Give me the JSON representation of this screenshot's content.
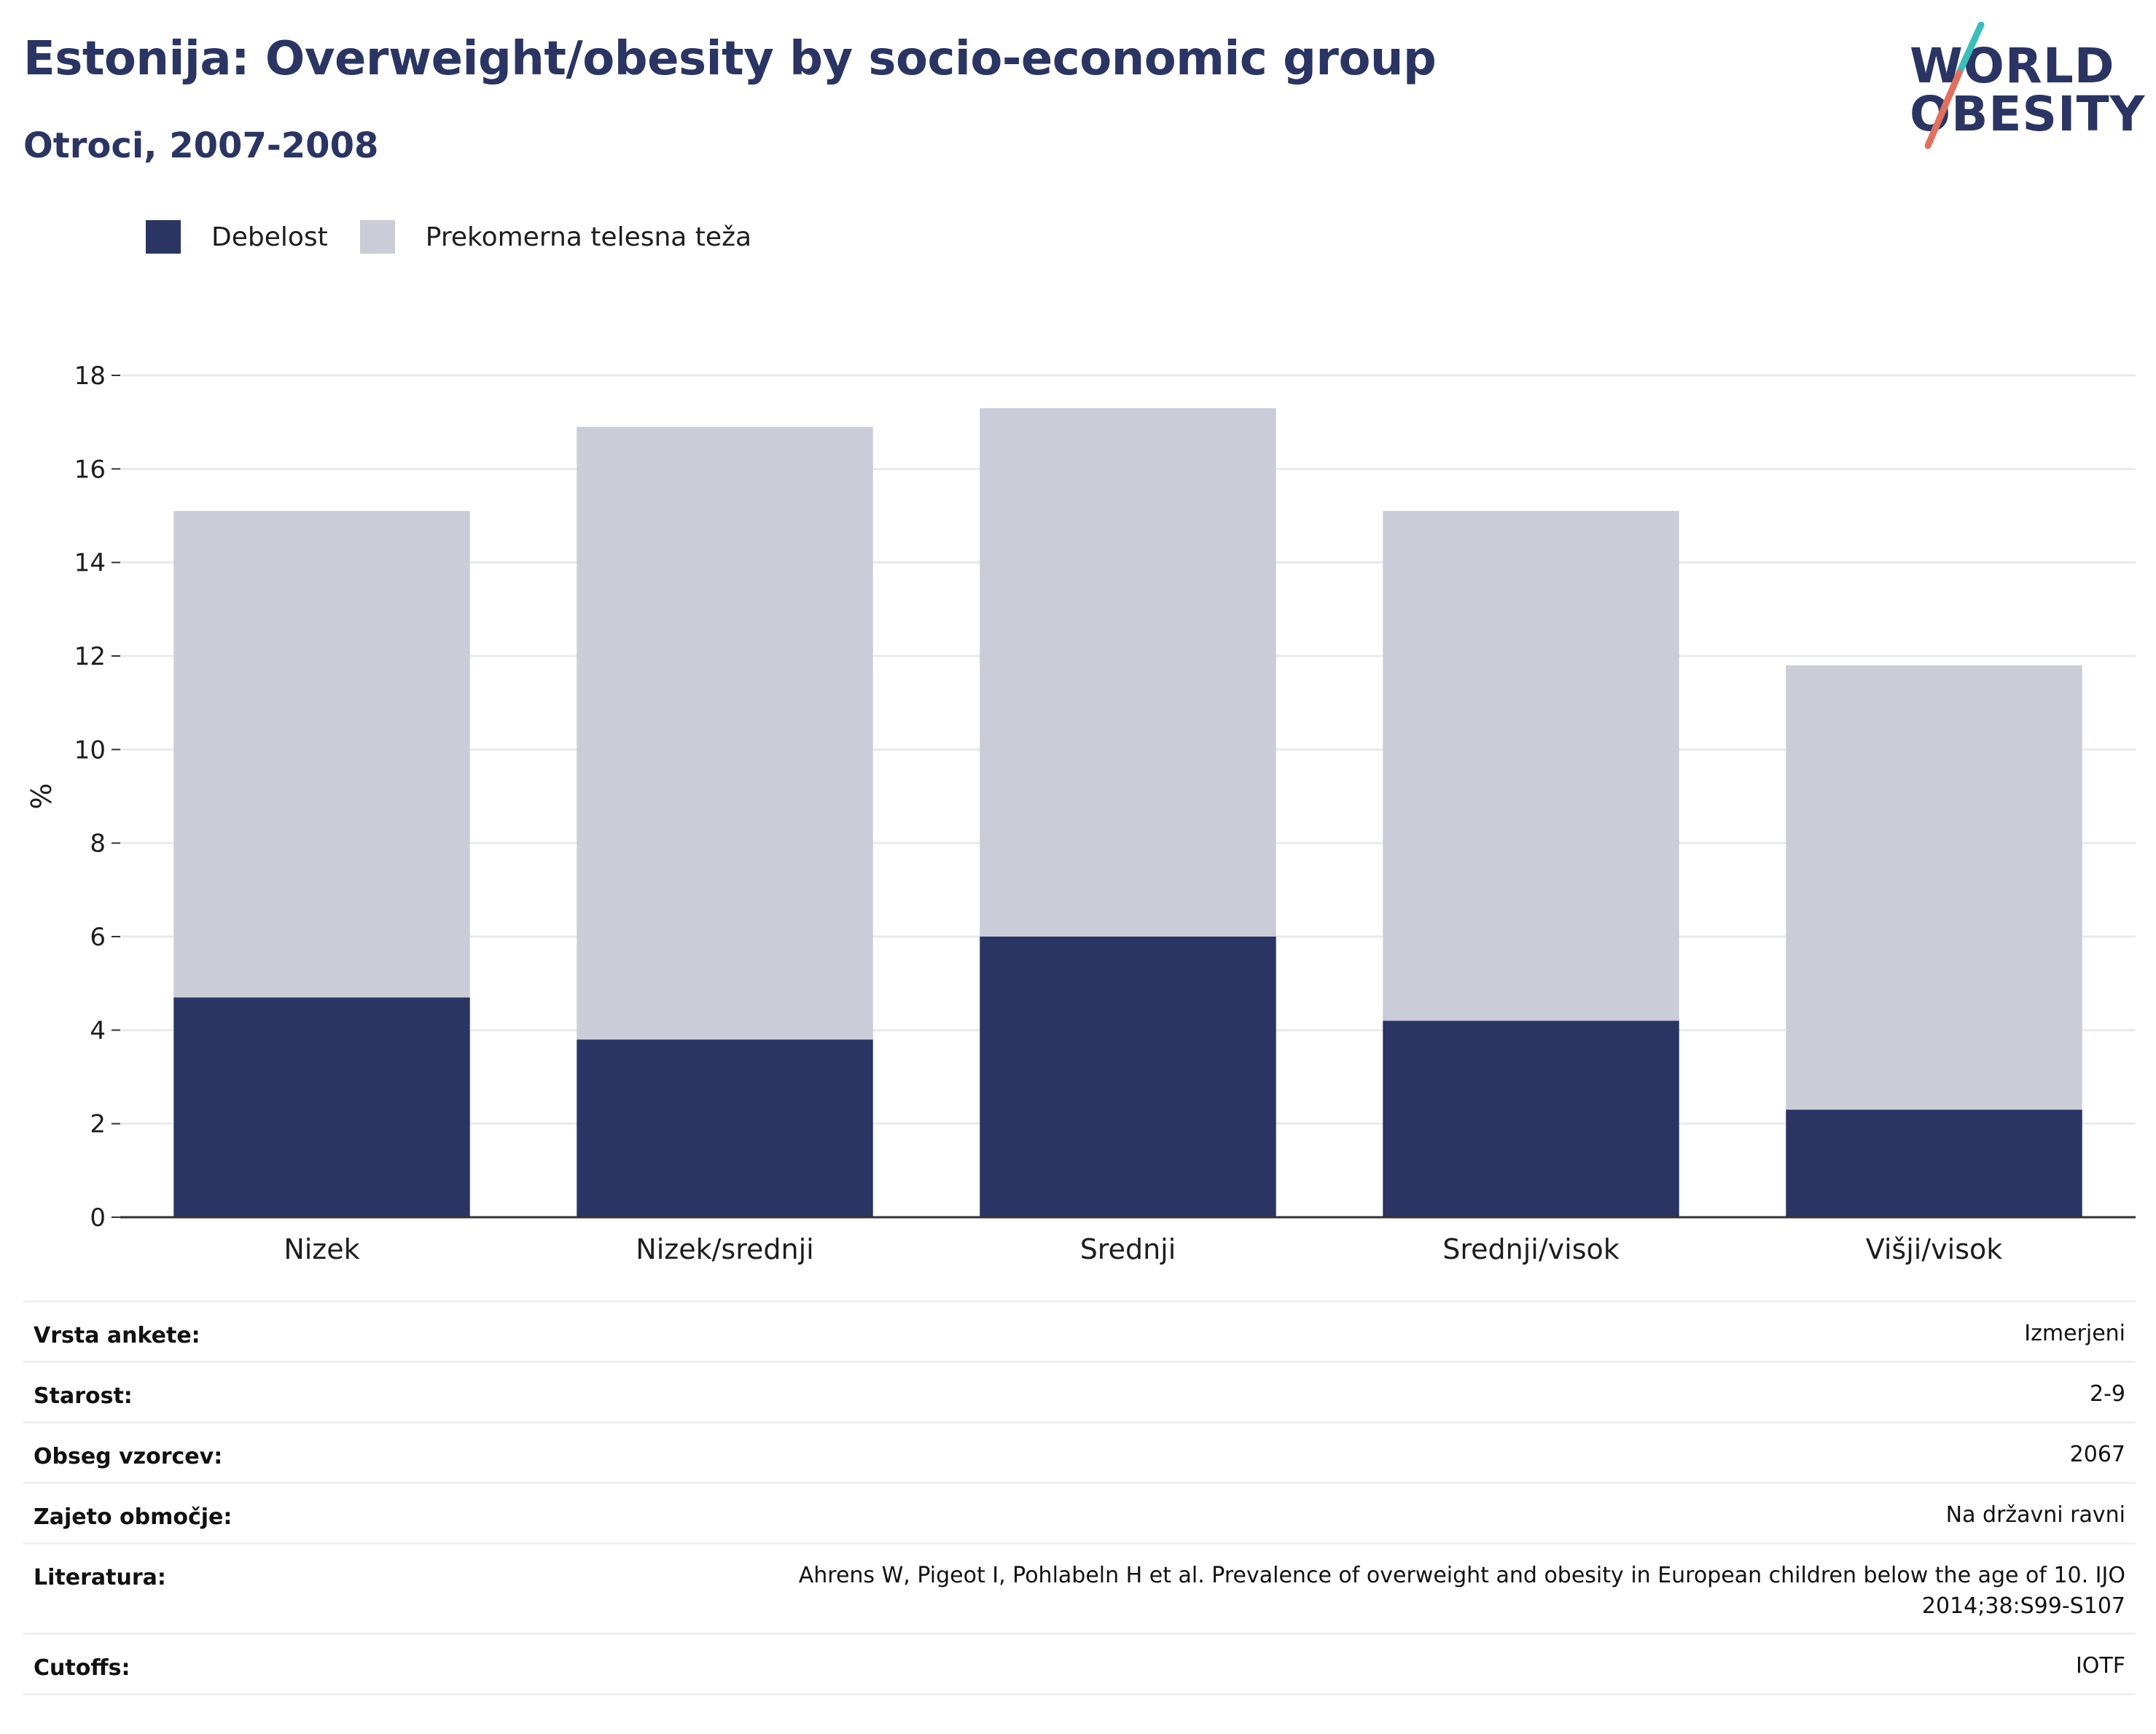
{
  "header": {
    "title": "Estonija: Overweight/obesity by socio-economic group",
    "subtitle": "Otroci, 2007-2008"
  },
  "logo": {
    "line1": "WORLD",
    "line2": "OBESITY",
    "colors": {
      "text": "#2a3564",
      "slash_top": "#3bbdb9",
      "slash_bottom": "#e0705f"
    }
  },
  "colors": {
    "obesity": "#2a3564",
    "overweight": "#cbccd8",
    "grid": "#e9eaee",
    "axis": "#333333"
  },
  "chart_data": {
    "type": "bar",
    "stacked": true,
    "categories": [
      "Nizek",
      "Nizek/srednji",
      "Srednji",
      "Srednji/visok",
      "Višji/visok"
    ],
    "series": [
      {
        "name": "Debelost",
        "color": "#2a3564",
        "values": [
          4.7,
          3.8,
          6.0,
          4.2,
          2.3
        ]
      },
      {
        "name": "Prekomerna telesna teža",
        "color": "#cbccd8",
        "values": [
          10.4,
          13.1,
          11.3,
          10.9,
          9.5
        ]
      }
    ],
    "ylabel": "%",
    "ylim": [
      0,
      18
    ],
    "yticks": [
      "0",
      "2",
      "4",
      "6",
      "8",
      "10",
      "12",
      "14",
      "16",
      "18"
    ],
    "grid": true,
    "legend": "top-left"
  },
  "meta": [
    {
      "key": "Vrsta ankete:",
      "value": "Izmerjeni"
    },
    {
      "key": "Starost:",
      "value": "2-9"
    },
    {
      "key": "Obseg vzorcev:",
      "value": "2067"
    },
    {
      "key": "Zajeto območje:",
      "value": "Na državni ravni"
    },
    {
      "key": "Literatura:",
      "value": "Ahrens W, Pigeot I, Pohlabeln H et al. Prevalence of overweight and obesity in European children below the age of 10. IJO 2014;38:S99-S107"
    },
    {
      "key": "Cutoffs:",
      "value": "IOTF"
    }
  ]
}
